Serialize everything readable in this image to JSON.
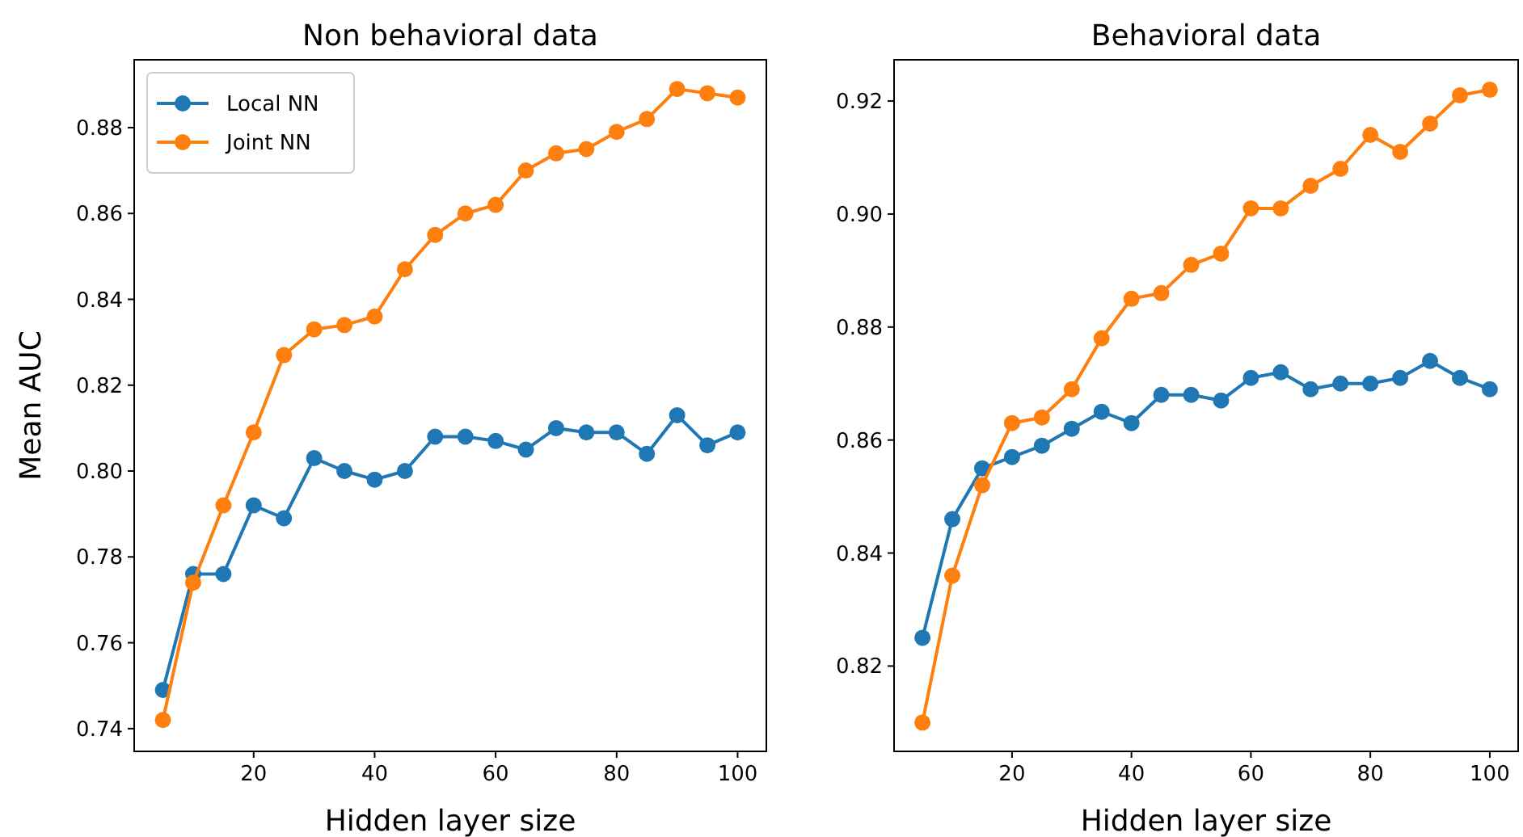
{
  "chart_data": [
    {
      "type": "line",
      "title": "Non behavioral data",
      "xlabel": "Hidden layer size",
      "ylabel": "Mean AUC",
      "x": [
        5,
        10,
        15,
        20,
        25,
        30,
        35,
        40,
        45,
        50,
        55,
        60,
        65,
        70,
        75,
        80,
        85,
        90,
        95,
        100
      ],
      "series": [
        {
          "name": "Local NN",
          "color": "#1f77b4",
          "values": [
            0.749,
            0.776,
            0.776,
            0.792,
            0.789,
            0.803,
            0.8,
            0.798,
            0.8,
            0.808,
            0.808,
            0.807,
            0.805,
            0.81,
            0.809,
            0.809,
            0.804,
            0.813,
            0.806,
            0.809
          ]
        },
        {
          "name": "Joint NN",
          "color": "#ff7f0e",
          "values": [
            0.742,
            0.774,
            0.792,
            0.809,
            0.827,
            0.833,
            0.834,
            0.836,
            0.847,
            0.855,
            0.86,
            0.862,
            0.87,
            0.874,
            0.875,
            0.879,
            0.882,
            0.889,
            0.888,
            0.887
          ]
        }
      ],
      "xlim": [
        0.25,
        104.75
      ],
      "xticks": [
        20,
        40,
        60,
        80,
        100
      ],
      "ylim": [
        0.7347,
        0.8958
      ],
      "yticks": [
        0.74,
        0.76,
        0.78,
        {
          "value": 0.8,
          "label": "0.80"
        },
        0.82,
        0.84,
        0.86,
        0.88
      ],
      "marker": "circle",
      "line_style": "solid",
      "legend": "top left",
      "grid": false
    },
    {
      "type": "line",
      "title": "Behavioral data",
      "xlabel": "Hidden layer size",
      "x": [
        5,
        10,
        15,
        20,
        25,
        30,
        35,
        40,
        45,
        50,
        55,
        60,
        65,
        70,
        75,
        80,
        85,
        90,
        95,
        100
      ],
      "series": [
        {
          "color": "#1f77b4",
          "values": [
            0.825,
            0.846,
            0.855,
            0.857,
            0.859,
            0.862,
            0.865,
            0.863,
            0.868,
            0.868,
            0.867,
            0.871,
            0.872,
            0.869,
            0.87,
            0.87,
            0.871,
            0.874,
            0.871,
            0.869
          ]
        },
        {
          "color": "#ff7f0e",
          "values": [
            0.81,
            0.836,
            0.852,
            0.863,
            0.864,
            0.869,
            0.878,
            0.885,
            0.886,
            0.891,
            0.893,
            0.901,
            0.901,
            0.905,
            0.908,
            0.914,
            0.911,
            0.916,
            0.921,
            0.922
          ]
        }
      ],
      "xlim": [
        0.25,
        104.75
      ],
      "xticks": [
        20,
        40,
        60,
        80,
        100
      ],
      "ylim": [
        0.8049,
        0.9273
      ],
      "yticks": [
        0.82,
        0.84,
        0.86,
        0.88,
        {
          "value": 0.9,
          "label": "0.90"
        },
        0.92
      ],
      "marker": "circle",
      "line_style": "solid",
      "legend": false,
      "grid": false
    }
  ]
}
